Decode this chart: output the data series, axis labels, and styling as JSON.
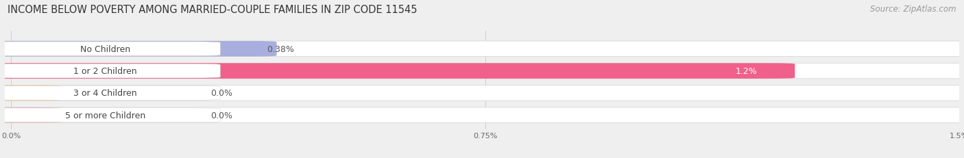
{
  "title": "INCOME BELOW POVERTY AMONG MARRIED-COUPLE FAMILIES IN ZIP CODE 11545",
  "source": "Source: ZipAtlas.com",
  "categories": [
    "No Children",
    "1 or 2 Children",
    "3 or 4 Children",
    "5 or more Children"
  ],
  "values": [
    0.38,
    1.2,
    0.0,
    0.0
  ],
  "bar_colors": [
    "#a8aedd",
    "#f0608a",
    "#f5c88a",
    "#f0a8a8"
  ],
  "value_labels": [
    "0.38%",
    "1.2%",
    "0.0%",
    "0.0%"
  ],
  "value_inside": [
    false,
    true,
    false,
    false
  ],
  "xlim": [
    0,
    1.5
  ],
  "xticks": [
    0.0,
    0.75,
    1.5
  ],
  "xtick_labels": [
    "0.0%",
    "0.75%",
    "1.5%"
  ],
  "background_color": "#efefef",
  "bar_bg_color": "#e4e4e4",
  "title_fontsize": 10.5,
  "source_fontsize": 8.5,
  "label_fontsize": 9,
  "value_fontsize": 9
}
